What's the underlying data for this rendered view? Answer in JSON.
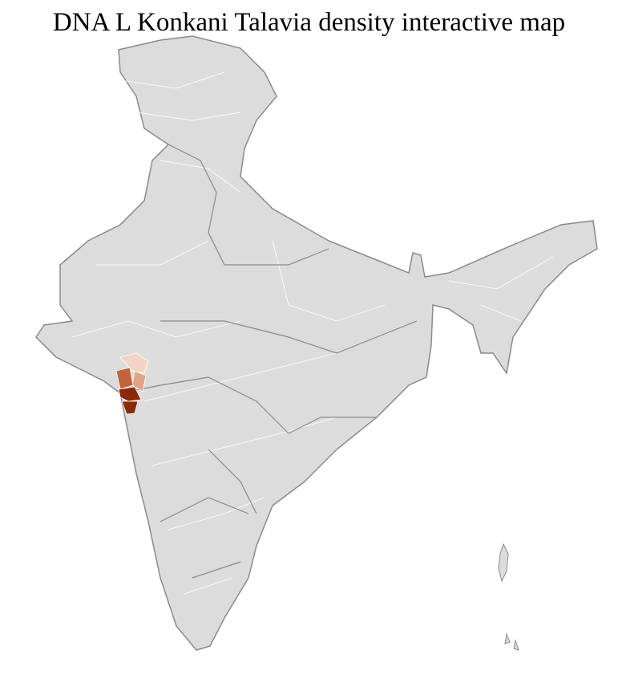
{
  "title": "DNA L Konkani Talavia density interactive map",
  "map": {
    "region": "India",
    "base_fill": "#dcdcdc",
    "border_color": "#8a8a8a",
    "district_line_color": "#ffffff",
    "highlight_colors": [
      "#f3d3c3",
      "#e0a585",
      "#c0653a",
      "#8b2a08"
    ]
  }
}
